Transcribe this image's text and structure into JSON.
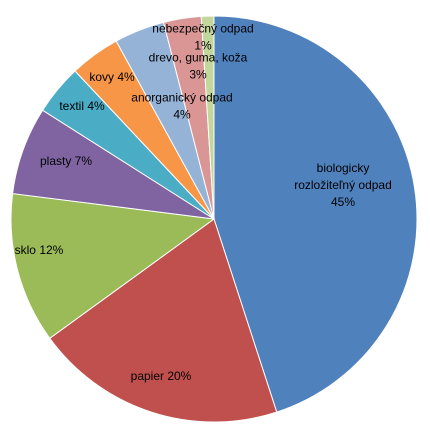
{
  "chart_data": {
    "type": "pie",
    "title": "",
    "slices": [
      {
        "label": "biologicky rozložiteľný odpad",
        "lines": [
          "biologicky",
          "rozložiteľný odpad",
          "45%"
        ],
        "value": 45,
        "color": "#4f81bd"
      },
      {
        "label": "papier",
        "lines": [
          "papier 20%"
        ],
        "value": 20,
        "color": "#c0504d"
      },
      {
        "label": "sklo",
        "lines": [
          "sklo 12%"
        ],
        "value": 12,
        "color": "#9bbb59"
      },
      {
        "label": "plasty",
        "lines": [
          "plasty 7%"
        ],
        "value": 7,
        "color": "#8064a2"
      },
      {
        "label": "textil",
        "lines": [
          "textil 4%"
        ],
        "value": 4,
        "color": "#4bacc6"
      },
      {
        "label": "kovy",
        "lines": [
          "kovy 4%"
        ],
        "value": 4,
        "color": "#f79646"
      },
      {
        "label": "anorganický odpad",
        "lines": [
          "anorganický odpad",
          "4%"
        ],
        "value": 4,
        "color": "#95b3d7"
      },
      {
        "label": "drevo, guma, koža",
        "lines": [
          "drevo, guma, koža",
          "3%"
        ],
        "value": 3,
        "color": "#d99694"
      },
      {
        "label": "nebezpečný odpad",
        "lines": [
          "nebezpečný odpad",
          "1%"
        ],
        "value": 1,
        "color": "#c3d69b"
      }
    ],
    "start_angle_deg": 0,
    "direction": "clockwise",
    "legend": "none"
  }
}
